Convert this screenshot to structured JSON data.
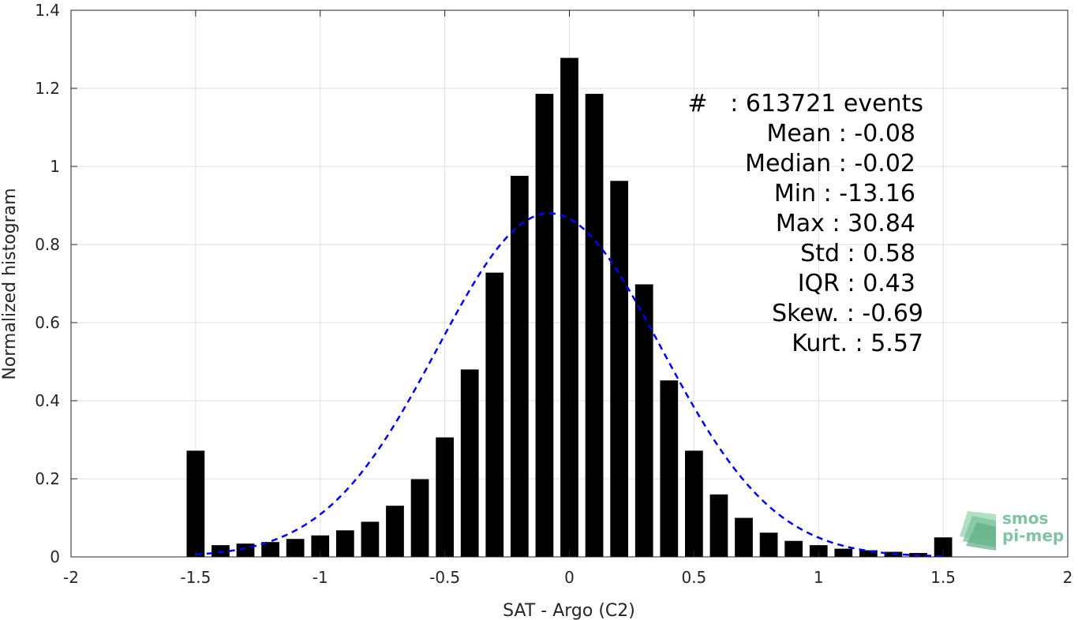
{
  "chart_data": {
    "type": "bar",
    "title": "",
    "xlabel": "SAT - Argo (C2)",
    "ylabel": "Normalized histogram",
    "xlim": [
      -2,
      2
    ],
    "ylim": [
      0,
      1.4
    ],
    "grid": true,
    "xticks": [
      "-2",
      "-1.5",
      "-1",
      "-0.5",
      "0",
      "0.5",
      "1",
      "1.5",
      "2"
    ],
    "yticks": [
      "0",
      "0.2",
      "0.4",
      "0.6",
      "0.8",
      "1",
      "1.2",
      "1.4"
    ],
    "bar_centers": [
      -1.5,
      -1.4,
      -1.3,
      -1.2,
      -1.1,
      -1.0,
      -0.9,
      -0.8,
      -0.7,
      -0.6,
      -0.5,
      -0.4,
      -0.3,
      -0.2,
      -0.1,
      0.0,
      0.1,
      0.2,
      0.3,
      0.4,
      0.5,
      0.6,
      0.7,
      0.8,
      0.9,
      1.0,
      1.1,
      1.2,
      1.3,
      1.4,
      1.5
    ],
    "values": [
      0.272,
      0.03,
      0.034,
      0.038,
      0.046,
      0.055,
      0.068,
      0.09,
      0.131,
      0.199,
      0.306,
      0.48,
      0.728,
      0.976,
      1.186,
      1.278,
      1.186,
      0.963,
      0.698,
      0.452,
      0.272,
      0.16,
      0.1,
      0.062,
      0.041,
      0.03,
      0.021,
      0.017,
      0.013,
      0.01,
      0.05
    ],
    "fit_curve": {
      "style": "dashed",
      "color": "#0000ff",
      "mean": -0.08,
      "std": 0.45,
      "peak": 0.88,
      "x_range": [
        -1.5,
        1.5
      ]
    },
    "bar_color": "#000000",
    "stats": [
      "#   : 613721 events",
      "Mean : -0.08",
      "Median : -0.02",
      "Min : -13.16",
      "Max : 30.84",
      "Std : 0.58",
      "IQR : 0.43",
      "Skew. : -0.69",
      "Kurt. : 5.57"
    ]
  },
  "logo": {
    "line1": "smos",
    "line2": "pi-mep",
    "color": "#7fc4a0"
  }
}
